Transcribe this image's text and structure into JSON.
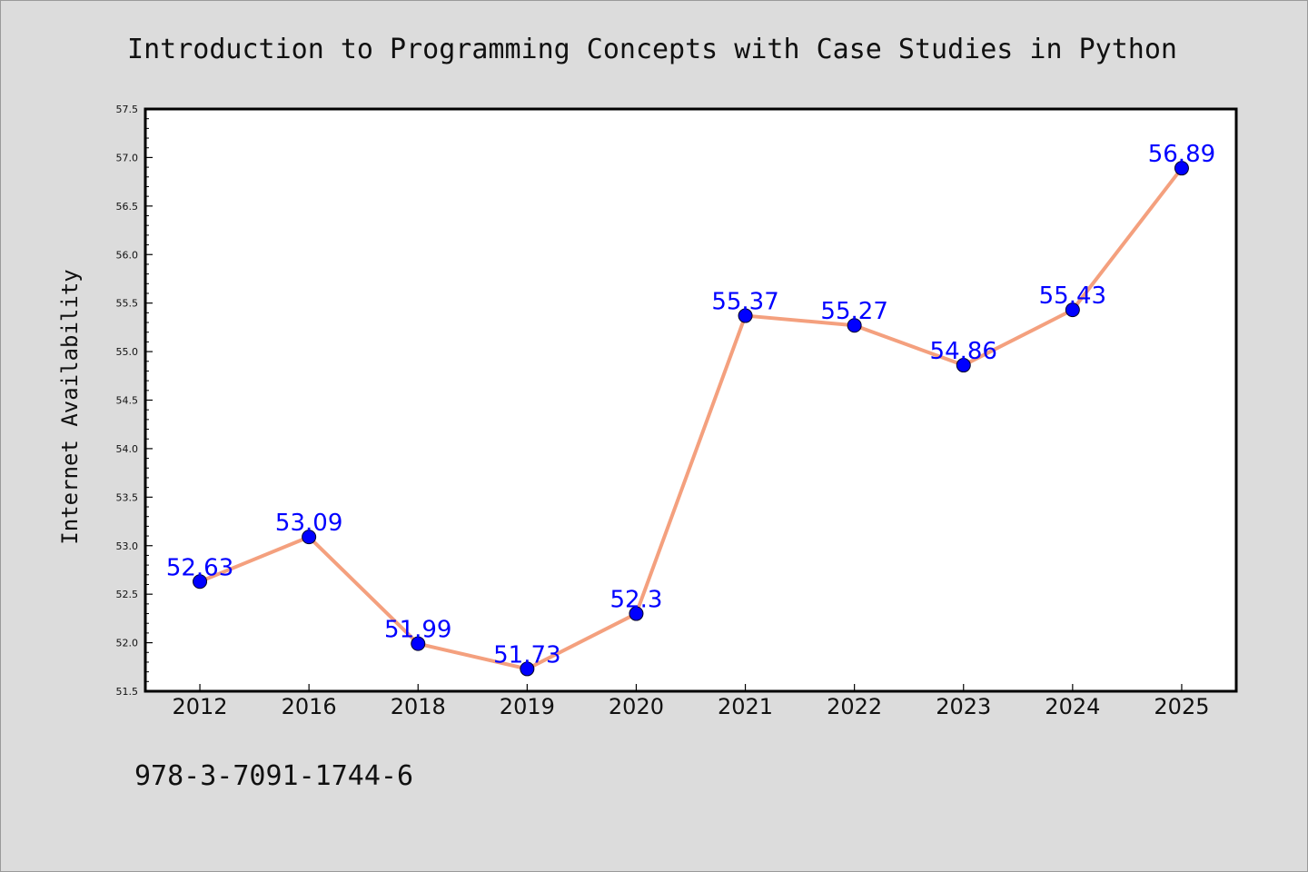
{
  "chart_data": {
    "type": "line",
    "title": "Introduction to Programming Concepts with Case Studies in Python",
    "xlabel": "",
    "ylabel": "Internet Availability",
    "categories": [
      "2012",
      "2016",
      "2018",
      "2019",
      "2020",
      "2021",
      "2022",
      "2023",
      "2024",
      "2025"
    ],
    "series": [
      {
        "values": [
          52.63,
          53.09,
          51.99,
          51.73,
          52.3,
          55.37,
          55.27,
          54.86,
          55.43,
          56.89
        ],
        "data_labels": [
          "52.63",
          "53.09",
          "51.99",
          "51.73",
          "52.3",
          "55.37",
          "55.27",
          "54.86",
          "55.43",
          "56.89"
        ]
      }
    ],
    "ylim": [
      51.5,
      57.5
    ],
    "yticks": [
      "51.5",
      "52.0",
      "52.5",
      "53.0",
      "53.5",
      "54.0",
      "54.5",
      "55.0",
      "55.5",
      "56.0",
      "56.5",
      "57.0",
      "57.5"
    ],
    "grid": false,
    "legend": "none",
    "line_color": "#f4a07e",
    "marker_color": "#0000ff",
    "label_color": "#0000ff"
  },
  "caption": "978-3-7091-1744-6"
}
